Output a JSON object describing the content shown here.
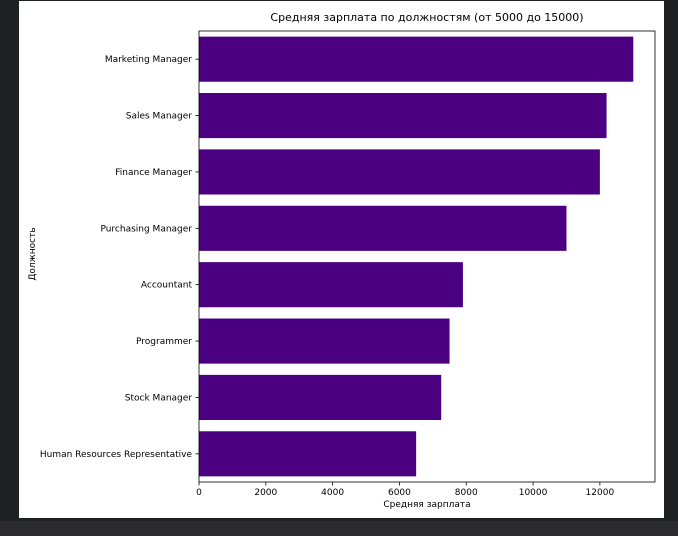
{
  "chart_data": {
    "type": "bar",
    "orientation": "horizontal",
    "title": "Средняя зарплата по должностям (от 5000 до 15000)",
    "xlabel": "Средняя зарплата",
    "ylabel": "Должность",
    "categories": [
      "Marketing Manager",
      "Sales Manager",
      "Finance Manager",
      "Purchasing Manager",
      "Accountant",
      "Programmer",
      "Stock Manager",
      "Human Resources Representative"
    ],
    "values": [
      13000,
      12200,
      12000,
      11000,
      7900,
      7500,
      7250,
      6500
    ],
    "xlim": [
      0,
      13650
    ],
    "xticks": [
      0,
      2000,
      4000,
      6000,
      8000,
      10000,
      12000
    ],
    "grid": false,
    "colors": {
      "bar": "#4b0082"
    }
  }
}
